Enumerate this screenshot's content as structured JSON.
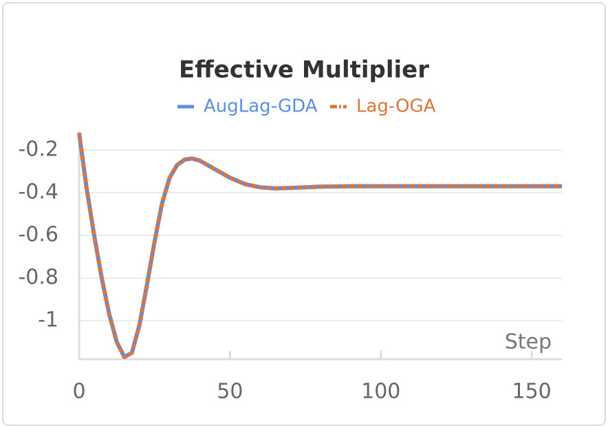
{
  "chart_data": {
    "type": "line",
    "title": "Effective Multiplier",
    "x_label": "Step",
    "x": [
      0,
      2.5,
      5,
      7.5,
      10,
      12.5,
      15,
      17.5,
      20,
      22.5,
      25,
      27.5,
      30,
      32.5,
      35,
      37.5,
      40,
      45,
      50,
      55,
      60,
      65,
      70,
      80,
      90,
      100,
      110,
      120,
      130,
      140,
      150,
      160
    ],
    "series": [
      {
        "name": "AugLag-GDA",
        "color": "#5b8ee0",
        "style": "solid",
        "values": [
          -0.12,
          -0.38,
          -0.6,
          -0.8,
          -0.97,
          -1.1,
          -1.17,
          -1.15,
          -1.02,
          -0.83,
          -0.63,
          -0.45,
          -0.33,
          -0.27,
          -0.245,
          -0.24,
          -0.25,
          -0.29,
          -0.33,
          -0.36,
          -0.375,
          -0.38,
          -0.378,
          -0.372,
          -0.37,
          -0.37,
          -0.37,
          -0.37,
          -0.37,
          -0.37,
          -0.37,
          -0.37
        ]
      },
      {
        "name": "Lag-OGA",
        "color": "#e0743a",
        "style": "dashed",
        "values": [
          -0.12,
          -0.38,
          -0.6,
          -0.8,
          -0.97,
          -1.1,
          -1.17,
          -1.15,
          -1.02,
          -0.83,
          -0.63,
          -0.45,
          -0.33,
          -0.27,
          -0.245,
          -0.24,
          -0.25,
          -0.29,
          -0.33,
          -0.36,
          -0.375,
          -0.38,
          -0.378,
          -0.372,
          -0.37,
          -0.37,
          -0.37,
          -0.37,
          -0.37,
          -0.37,
          -0.37,
          -0.37
        ]
      }
    ],
    "xlim": [
      0,
      160
    ],
    "xticks": [
      0,
      50,
      100,
      150
    ],
    "ylim": [
      -1.18,
      -0.11
    ],
    "yticks": [
      -0.2,
      -0.4,
      -0.6,
      -0.8,
      -1
    ],
    "grid": true
  }
}
